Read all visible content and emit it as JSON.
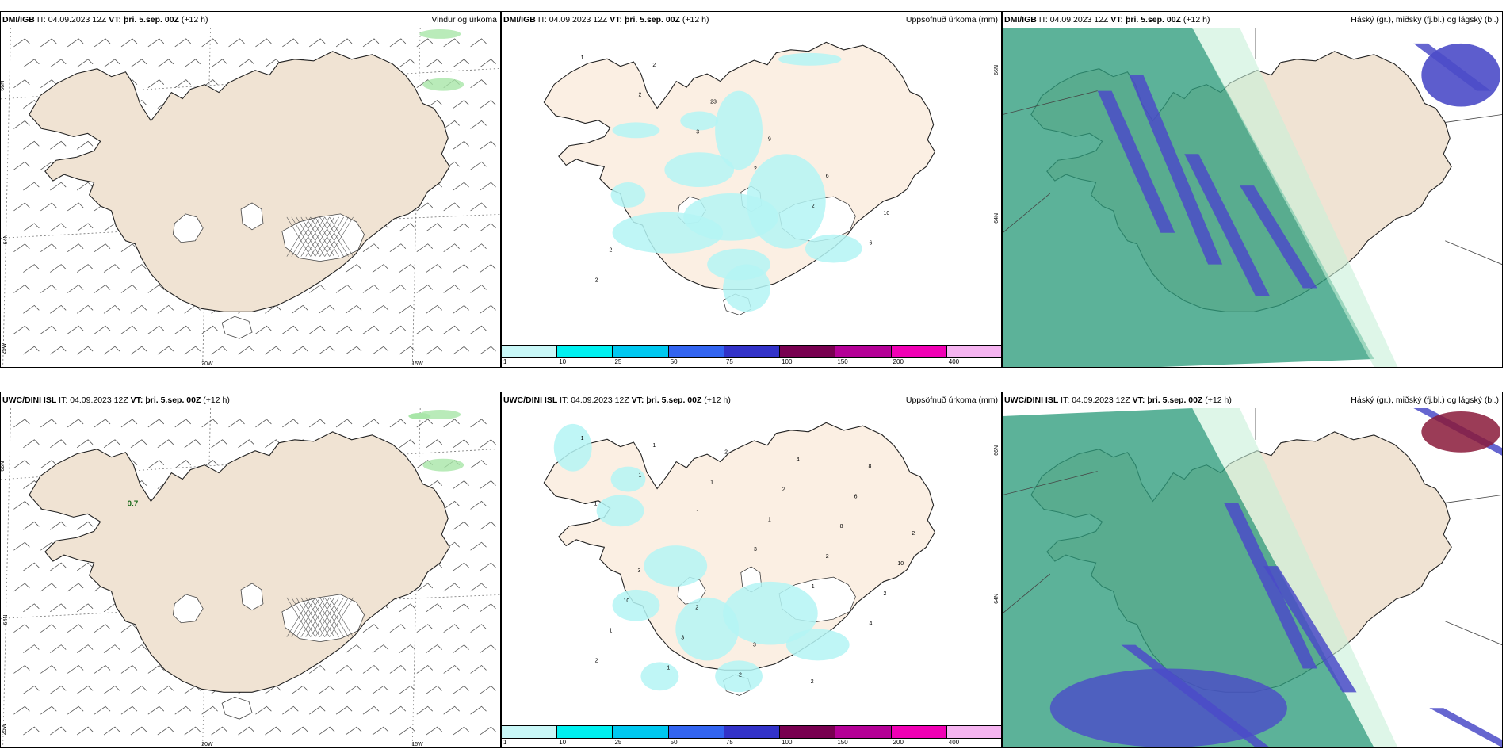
{
  "rows": [
    {
      "panels": [
        {
          "src": "DMI/IGB",
          "it_label": "IT:",
          "it": "04.09.2023 12Z",
          "vt_label": "VT:",
          "vt": "þri. 5.sep. 00Z",
          "lead": "(+12 h)",
          "title": "Vindur og úrkoma",
          "kind": "wind"
        },
        {
          "src": "DMI/IGB",
          "it_label": "IT:",
          "it": "04.09.2023 12Z",
          "vt_label": "VT:",
          "vt": "þri. 5.sep. 00Z",
          "lead": "(+12 h)",
          "title": "Uppsöfnuð úrkoma (mm)",
          "kind": "precip"
        },
        {
          "src": "DMI/IGB",
          "it_label": "IT:",
          "it": "04.09.2023 12Z",
          "vt_label": "VT:",
          "vt": "þri. 5.sep. 00Z",
          "lead": "(+12 h)",
          "title": "Háský (gr.), miðský (fj.bl.) og lágský (bl.)",
          "kind": "cloud"
        }
      ]
    },
    {
      "panels": [
        {
          "src": "UWC/DINI ISL",
          "it_label": "IT:",
          "it": "04.09.2023 12Z",
          "vt_label": "VT:",
          "vt": "þri. 5.sep. 00Z",
          "lead": "(+12 h)",
          "title": "",
          "kind": "wind"
        },
        {
          "src": "UWC/DINI ISL",
          "it_label": "IT:",
          "it": "04.09.2023 12Z",
          "vt_label": "VT:",
          "vt": "þri. 5.sep. 00Z",
          "lead": "(+12 h)",
          "title": "Uppsöfnuð úrkoma (mm)",
          "kind": "precip"
        },
        {
          "src": "UWC/DINI ISL",
          "it_label": "IT:",
          "it": "04.09.2023 12Z",
          "vt_label": "VT:",
          "vt": "þri. 5.sep. 00Z",
          "lead": "(+12 h)",
          "title": "Háský (gr.), miðský (fj.bl.) og lágský (bl.)",
          "kind": "cloud"
        }
      ]
    }
  ],
  "axis_labels": {
    "lat_66": "66N",
    "lat_64": "64N",
    "lon_20": "20W",
    "lon_15": "15W",
    "lon_25": "25W"
  },
  "wind_value_label": "0.7",
  "precip_labels_top": [
    "1",
    "2",
    "3",
    "2",
    "2",
    "6",
    "2",
    "2",
    "23",
    "9",
    "6",
    "10",
    "2"
  ],
  "precip_labels_bottom": [
    "1",
    "1",
    "1",
    "3",
    "1",
    "4",
    "2",
    "1",
    "1",
    "1",
    "2",
    "2",
    "1",
    "1",
    "2",
    "2",
    "8",
    "10",
    "10",
    "3",
    "2",
    "4",
    "6",
    "2",
    "3",
    "2",
    "3",
    "2",
    "8",
    "1"
  ],
  "colorbar": {
    "colors": [
      "#c8f7f7",
      "#00f0f0",
      "#00c8f0",
      "#3264f0",
      "#3232c8",
      "#780050",
      "#b40096",
      "#f000b4",
      "#f5b4f0"
    ],
    "ticks": [
      "1",
      "10",
      "25",
      "50",
      "75",
      "100",
      "150",
      "200",
      "400"
    ]
  },
  "colors": {
    "land": "#f0e3d3",
    "land_precip": "#fbefe3",
    "precip_light": "#b4f5f5",
    "cloud_high": "#2e9c7c",
    "cloud_mid": "#4b4bc8",
    "cloud_low": "#c8f0d8"
  }
}
